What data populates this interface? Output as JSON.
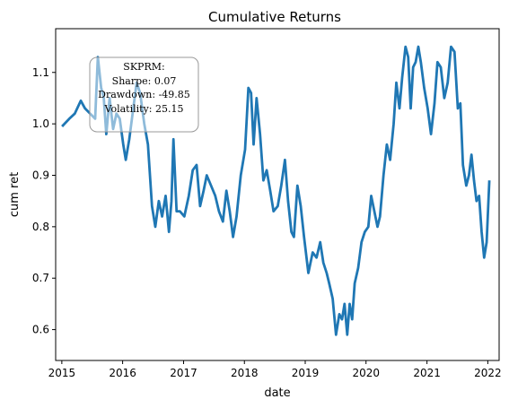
{
  "chart_data": {
    "type": "line",
    "title": "Cumulative Returns",
    "xlabel": "date",
    "ylabel": "cum ret",
    "xlim": [
      "2014-11-25",
      "2022-03-10"
    ],
    "ylim": [
      0.54,
      1.185
    ],
    "x_ticks": [
      "2015",
      "2016",
      "2017",
      "2018",
      "2019",
      "2020",
      "2021",
      "2022"
    ],
    "y_ticks": [
      "0.6",
      "0.7",
      "0.8",
      "0.9",
      "1.0",
      "1.1"
    ],
    "grid": false,
    "series_color": "#1f77b4",
    "series": [
      {
        "x": [
          "2015-01-02",
          "2015-02-15",
          "2015-03-20",
          "2015-04-25",
          "2015-05-20",
          "2015-06-20",
          "2015-07-20",
          "2015-08-05",
          "2015-08-25",
          "2015-09-10",
          "2015-09-25",
          "2015-10-15",
          "2015-11-05",
          "2015-11-25",
          "2015-12-15",
          "2016-01-05",
          "2016-01-20",
          "2016-02-10",
          "2016-03-01",
          "2016-03-25",
          "2016-04-15",
          "2016-05-10",
          "2016-06-01",
          "2016-06-25",
          "2016-07-15",
          "2016-08-05",
          "2016-08-25",
          "2016-09-15",
          "2016-10-05",
          "2016-10-20",
          "2016-11-01",
          "2016-11-20",
          "2016-12-10",
          "2017-01-05",
          "2017-02-01",
          "2017-02-25",
          "2017-03-20",
          "2017-04-10",
          "2017-05-01",
          "2017-05-20",
          "2017-06-15",
          "2017-07-10",
          "2017-08-01",
          "2017-08-25",
          "2017-09-15",
          "2017-10-05",
          "2017-10-25",
          "2017-11-15",
          "2017-12-10",
          "2018-01-05",
          "2018-01-25",
          "2018-02-10",
          "2018-02-25",
          "2018-03-15",
          "2018-04-05",
          "2018-04-25",
          "2018-05-15",
          "2018-06-05",
          "2018-06-25",
          "2018-07-20",
          "2018-08-10",
          "2018-09-01",
          "2018-09-20",
          "2018-10-10",
          "2018-10-25",
          "2018-11-15",
          "2018-12-05",
          "2018-12-25",
          "2019-01-20",
          "2019-02-15",
          "2019-03-10",
          "2019-04-01",
          "2019-04-20",
          "2019-05-10",
          "2019-05-25",
          "2019-06-15",
          "2019-07-05",
          "2019-07-25",
          "2019-08-10",
          "2019-08-25",
          "2019-09-10",
          "2019-09-25",
          "2019-10-10",
          "2019-10-25",
          "2019-11-15",
          "2019-12-05",
          "2019-12-25",
          "2020-01-15",
          "2020-02-01",
          "2020-02-20",
          "2020-03-10",
          "2020-03-25",
          "2020-04-15",
          "2020-05-05",
          "2020-05-25",
          "2020-06-15",
          "2020-07-01",
          "2020-07-20",
          "2020-08-05",
          "2020-08-25",
          "2020-09-10",
          "2020-09-25",
          "2020-10-10",
          "2020-10-25",
          "2020-11-10",
          "2020-11-25",
          "2020-12-15",
          "2021-01-05",
          "2021-01-25",
          "2021-02-15",
          "2021-03-05",
          "2021-03-25",
          "2021-04-15",
          "2021-05-05",
          "2021-05-25",
          "2021-06-15",
          "2021-07-05",
          "2021-07-20",
          "2021-08-05",
          "2021-08-25",
          "2021-09-10",
          "2021-09-25",
          "2021-10-10",
          "2021-10-25",
          "2021-11-10",
          "2021-11-25",
          "2021-12-10",
          "2021-12-25",
          "2022-01-10"
        ],
        "y": [
          0.995,
          1.01,
          1.02,
          1.045,
          1.03,
          1.02,
          1.01,
          1.13,
          1.07,
          1.05,
          0.98,
          1.05,
          0.99,
          1.02,
          1.01,
          0.96,
          0.93,
          0.97,
          1.02,
          1.08,
          1.06,
          1.0,
          0.96,
          0.84,
          0.8,
          0.85,
          0.82,
          0.86,
          0.79,
          0.85,
          0.97,
          0.83,
          0.83,
          0.82,
          0.86,
          0.91,
          0.92,
          0.84,
          0.87,
          0.9,
          0.88,
          0.86,
          0.83,
          0.81,
          0.87,
          0.83,
          0.78,
          0.82,
          0.9,
          0.95,
          1.07,
          1.06,
          0.96,
          1.05,
          0.98,
          0.89,
          0.91,
          0.87,
          0.83,
          0.84,
          0.88,
          0.93,
          0.85,
          0.79,
          0.78,
          0.88,
          0.84,
          0.78,
          0.71,
          0.75,
          0.74,
          0.77,
          0.73,
          0.71,
          0.69,
          0.66,
          0.59,
          0.63,
          0.62,
          0.65,
          0.59,
          0.65,
          0.62,
          0.69,
          0.72,
          0.77,
          0.79,
          0.8,
          0.86,
          0.83,
          0.8,
          0.82,
          0.9,
          0.96,
          0.93,
          1.0,
          1.08,
          1.03,
          1.09,
          1.15,
          1.13,
          1.03,
          1.11,
          1.12,
          1.15,
          1.12,
          1.07,
          1.03,
          0.98,
          1.04,
          1.12,
          1.11,
          1.05,
          1.08,
          1.15,
          1.14,
          1.03,
          1.04,
          0.92,
          0.88,
          0.9,
          0.94,
          0.89,
          0.85,
          0.86,
          0.79,
          0.74,
          0.77,
          0.89
        ]
      }
    ],
    "annotation": {
      "lines": [
        "SKPRM:",
        "Sharpe: 0.07",
        "Drawdown: -49.85",
        "Volatility: 25.15"
      ]
    }
  }
}
